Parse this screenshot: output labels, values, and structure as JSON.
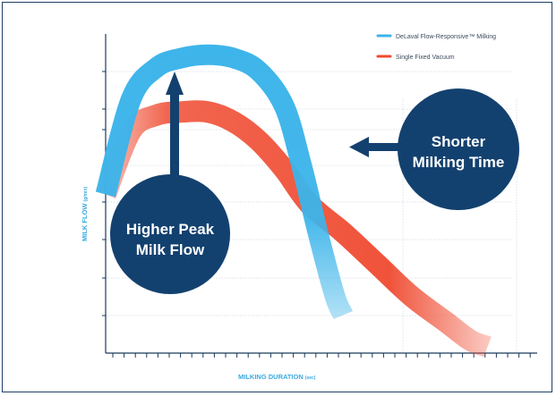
{
  "chart_data": {
    "type": "area",
    "title": "",
    "xlabel": "MILKING DURATION",
    "xlabel_unit": "(sec)",
    "ylabel": "MILK FLOW",
    "ylabel_unit": "(g/min)",
    "grid": true,
    "legend_position": "top-right",
    "series": [
      {
        "name": "DeLaval Flow-Responsive™ Milking",
        "color": "#3cb4ea",
        "points": [
          [
            0.0,
            0.5
          ],
          [
            0.06,
            0.8
          ],
          [
            0.12,
            0.9
          ],
          [
            0.18,
            0.93
          ],
          [
            0.24,
            0.94
          ],
          [
            0.3,
            0.93
          ],
          [
            0.36,
            0.89
          ],
          [
            0.42,
            0.78
          ],
          [
            0.46,
            0.6
          ],
          [
            0.5,
            0.38
          ],
          [
            0.54,
            0.18
          ],
          [
            0.56,
            0.12
          ]
        ]
      },
      {
        "name": "Single Fixed Vacuum",
        "color": "#ef4a30",
        "points": [
          [
            0.0,
            0.5
          ],
          [
            0.06,
            0.7
          ],
          [
            0.12,
            0.75
          ],
          [
            0.18,
            0.76
          ],
          [
            0.24,
            0.76
          ],
          [
            0.3,
            0.73
          ],
          [
            0.36,
            0.67
          ],
          [
            0.42,
            0.58
          ],
          [
            0.48,
            0.47
          ],
          [
            0.56,
            0.38
          ],
          [
            0.64,
            0.28
          ],
          [
            0.72,
            0.18
          ],
          [
            0.8,
            0.1
          ],
          [
            0.86,
            0.04
          ],
          [
            0.9,
            0.02
          ]
        ]
      }
    ],
    "annotations": [
      {
        "line1": "Higher Peak",
        "line2": "Milk Flow"
      },
      {
        "line1": "Shorter",
        "line2": "Milking Time"
      }
    ],
    "colors": {
      "callout": "#13416f",
      "axis": "#1b3a5c",
      "grid": "#d4dde6"
    }
  }
}
